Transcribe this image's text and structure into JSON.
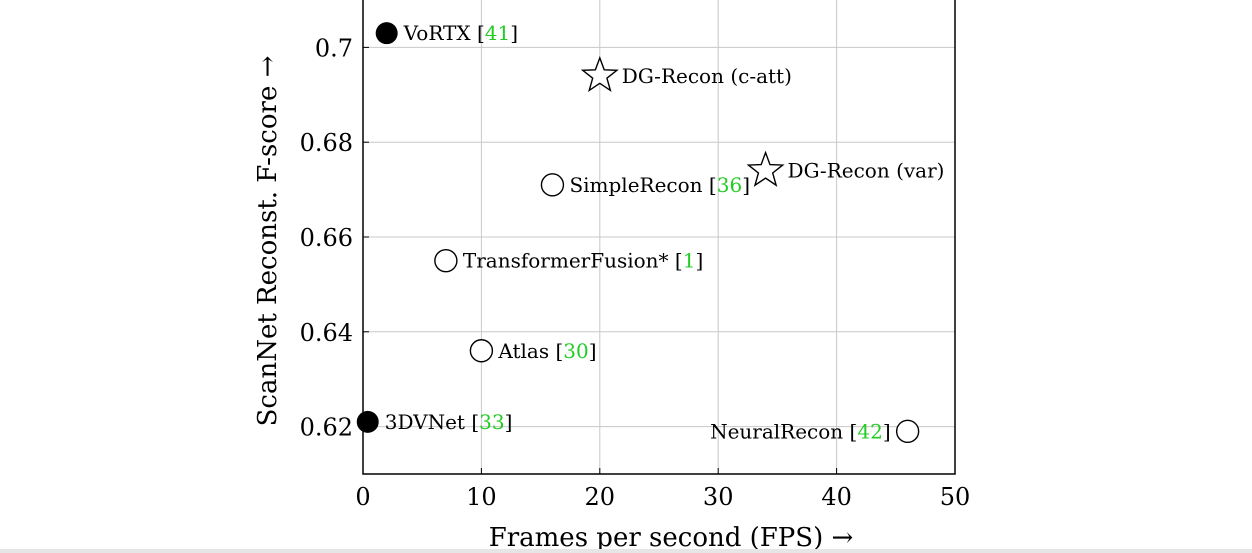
{
  "chart_data": {
    "type": "scatter",
    "xlabel": "Frames per second (FPS) →",
    "ylabel": "ScanNet Reconst. F-score →",
    "xlim": [
      0,
      50
    ],
    "ylim": [
      0.61,
      0.71
    ],
    "xticks": [
      0,
      10,
      20,
      30,
      40,
      50
    ],
    "xtick_labels": [
      "0",
      "10",
      "20",
      "30",
      "40",
      "50"
    ],
    "yticks": [
      0.62,
      0.64,
      0.66,
      0.68,
      0.7
    ],
    "ytick_labels": [
      "0.62",
      "0.64",
      "0.66",
      "0.68",
      "0.7"
    ],
    "grid": true,
    "points": [
      {
        "name": "VoRTX",
        "ref": "41",
        "x": 2,
        "y": 0.703,
        "marker": "filled-circle",
        "label_side": "right"
      },
      {
        "name": "DG-Recon (c-att)",
        "ref": "",
        "x": 20,
        "y": 0.694,
        "marker": "star",
        "label_side": "right"
      },
      {
        "name": "DG-Recon (var)",
        "ref": "",
        "x": 34,
        "y": 0.674,
        "marker": "star",
        "label_side": "right"
      },
      {
        "name": "SimpleRecon",
        "ref": "36",
        "x": 16,
        "y": 0.671,
        "marker": "open-circle",
        "label_side": "right"
      },
      {
        "name": "TransformerFusion*",
        "ref": "1",
        "x": 7,
        "y": 0.655,
        "marker": "open-circle",
        "label_side": "right"
      },
      {
        "name": "Atlas",
        "ref": "30",
        "x": 10,
        "y": 0.636,
        "marker": "open-circle",
        "label_side": "right"
      },
      {
        "name": "3DVNet",
        "ref": "33",
        "x": 0.4,
        "y": 0.621,
        "marker": "filled-circle",
        "label_side": "right"
      },
      {
        "name": "NeuralRecon",
        "ref": "42",
        "x": 46,
        "y": 0.619,
        "marker": "open-circle",
        "label_side": "left"
      }
    ]
  }
}
